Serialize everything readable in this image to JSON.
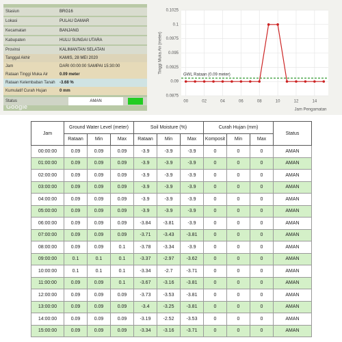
{
  "info": {
    "rows": [
      {
        "label": "Stasiun",
        "value": "BRG16"
      },
      {
        "label": "Lokasi",
        "value": "PULAU DAMAR"
      },
      {
        "label": "Kecamatan",
        "value": "BANJANG"
      },
      {
        "label": "Kabupaten",
        "value": "HULU SUNGAI UTARA"
      },
      {
        "label": "Provinsi",
        "value": "KALIMANTAN SELATAN"
      },
      {
        "label": "Tanggal Akhir",
        "value": "KAMIS, 28 MEI 2020"
      },
      {
        "label": "Jam",
        "value": "DARI 00:00:00 SAMPAI 15:30:00"
      },
      {
        "label": "Rataan Tinggi Muka Air",
        "value": "0.09 meter"
      },
      {
        "label": "Rataan Kelembaban Tanah",
        "value": "-3.68 %"
      },
      {
        "label": "Kumulatif Curah Hujan",
        "value": "0 mm"
      },
      {
        "label": "Status",
        "value": "AMAN"
      }
    ],
    "map_logo": "Google"
  },
  "chart_data": {
    "type": "line",
    "ylabel": "Tinggi Muka Air (meter)",
    "xlabel": "Jam Pengamatan",
    "x": [
      0,
      1,
      2,
      3,
      4,
      5,
      6,
      7,
      8,
      9,
      10,
      11,
      12,
      13,
      14,
      15
    ],
    "series": [
      {
        "name": "Tinggi Muka Air",
        "color": "#cc2222",
        "values": [
          0.09,
          0.09,
          0.09,
          0.09,
          0.09,
          0.09,
          0.09,
          0.09,
          0.09,
          0.1,
          0.1,
          0.09,
          0.09,
          0.09,
          0.09,
          0.09
        ]
      }
    ],
    "reference": {
      "value": 0.0906,
      "label": "GWL Rataan (0.09 meter)",
      "color": "#1a8f1a"
    },
    "xlim": [
      -0.5,
      15.5
    ],
    "xticks": [
      {
        "value": 0,
        "label": "00"
      },
      {
        "value": 2,
        "label": "02"
      },
      {
        "value": 4,
        "label": "04"
      },
      {
        "value": 6,
        "label": "06"
      },
      {
        "value": 8,
        "label": "08"
      },
      {
        "value": 10,
        "label": "10"
      },
      {
        "value": 12,
        "label": "12"
      },
      {
        "value": 14,
        "label": "14"
      }
    ],
    "ylim": [
      0.0875,
      0.1025
    ],
    "yticks": [
      0.0875,
      0.09,
      0.0925,
      0.095,
      0.0975,
      0.1,
      0.1025
    ],
    "grid": true
  },
  "table": {
    "header": [
      "Jam",
      "Ground Water Level (meter)",
      "Soil Moisture (%)",
      "Curah Hujan (mm)",
      "Status"
    ],
    "subheader": [
      "Rataan",
      "Min",
      "Max",
      "Rataan",
      "Min",
      "Max",
      "Komposit",
      "Min",
      "Max"
    ],
    "rows": [
      [
        "00:00:00",
        0.09,
        0.09,
        0.09,
        -3.9,
        -3.9,
        -3.9,
        0,
        0,
        0,
        "AMAN"
      ],
      [
        "01:00:00",
        0.09,
        0.09,
        0.09,
        -3.9,
        -3.9,
        -3.9,
        0,
        0,
        0,
        "AMAN"
      ],
      [
        "02:00:00",
        0.09,
        0.09,
        0.09,
        -3.9,
        -3.9,
        -3.9,
        0,
        0,
        0,
        "AMAN"
      ],
      [
        "03:00:00",
        0.09,
        0.09,
        0.09,
        -3.9,
        -3.9,
        -3.9,
        0,
        0,
        0,
        "AMAN"
      ],
      [
        "04:00:00",
        0.09,
        0.09,
        0.09,
        -3.9,
        -3.9,
        -3.9,
        0,
        0,
        0,
        "AMAN"
      ],
      [
        "05:00:00",
        0.09,
        0.09,
        0.09,
        -3.9,
        -3.9,
        -3.9,
        0,
        0,
        0,
        "AMAN"
      ],
      [
        "06:00:00",
        0.09,
        0.09,
        0.09,
        -3.84,
        -3.81,
        -3.9,
        0,
        0,
        0,
        "AMAN"
      ],
      [
        "07:00:00",
        0.09,
        0.09,
        0.09,
        -3.71,
        -3.43,
        -3.81,
        0,
        0,
        0,
        "AMAN"
      ],
      [
        "08:00:00",
        0.09,
        0.09,
        0.1,
        -3.78,
        -3.34,
        -3.9,
        0,
        0,
        0,
        "AMAN"
      ],
      [
        "09:00:00",
        0.1,
        0.1,
        0.1,
        -3.37,
        -2.97,
        -3.62,
        0,
        0,
        0,
        "AMAN"
      ],
      [
        "10:00:00",
        0.1,
        0.1,
        0.1,
        -3.34,
        -2.7,
        -3.71,
        0,
        0,
        0,
        "AMAN"
      ],
      [
        "11:00:00",
        0.09,
        0.09,
        0.1,
        -3.67,
        -3.16,
        -3.81,
        0,
        0,
        0,
        "AMAN"
      ],
      [
        "12:00:00",
        0.09,
        0.09,
        0.09,
        -3.73,
        -3.53,
        -3.81,
        0,
        0,
        0,
        "AMAN"
      ],
      [
        "13:00:00",
        0.09,
        0.09,
        0.09,
        -3.4,
        -3.25,
        -3.81,
        0,
        0,
        0,
        "AMAN"
      ],
      [
        "14:00:00",
        0.09,
        0.09,
        0.09,
        -3.19,
        -2.52,
        -3.53,
        0,
        0,
        0,
        "AMAN"
      ],
      [
        "15:00:00",
        0.09,
        0.09,
        0.09,
        -3.34,
        -3.16,
        -3.71,
        0,
        0,
        0,
        "AMAN"
      ]
    ]
  }
}
